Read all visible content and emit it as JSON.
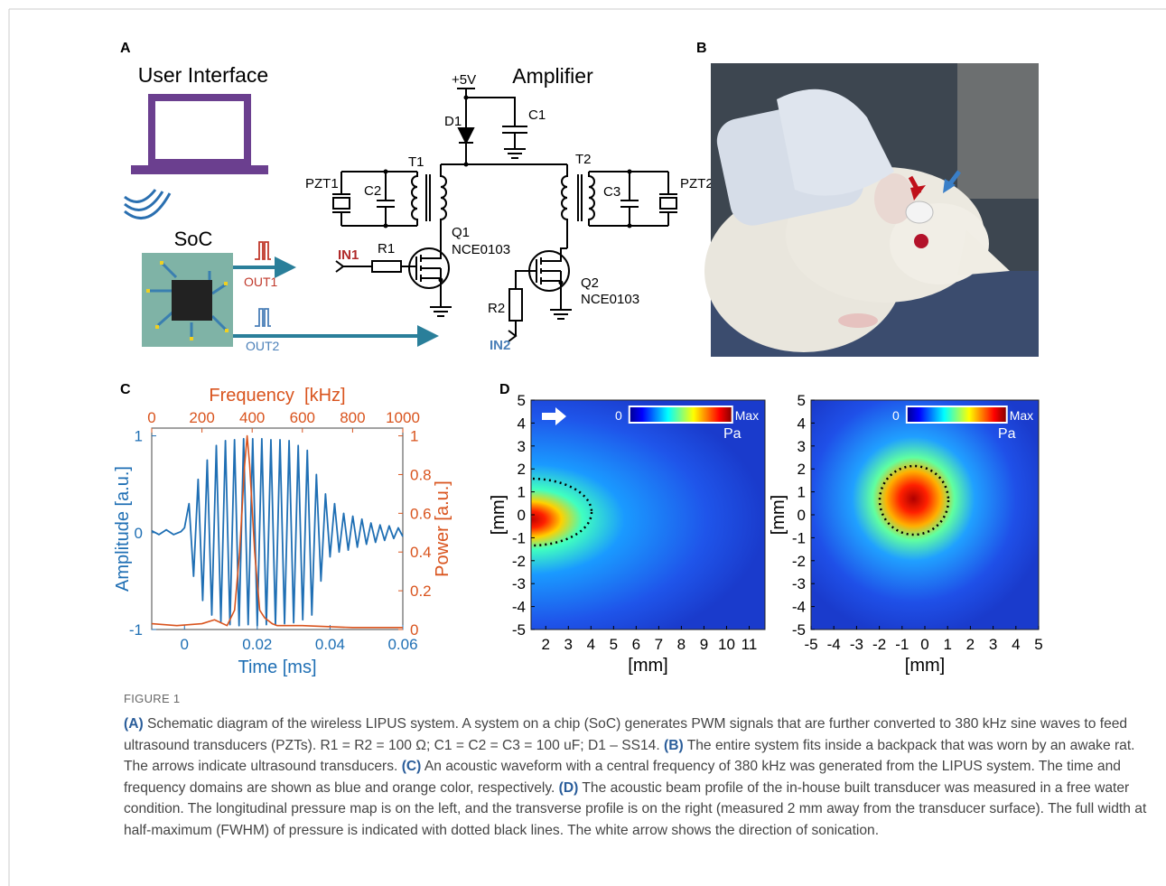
{
  "figure": {
    "panels": [
      "A",
      "B",
      "C",
      "D"
    ],
    "schematic": {
      "ui_title": "User Interface",
      "soc": "SoC",
      "out1": "OUT1",
      "out2": "OUT2",
      "amp_title": "Amplifier",
      "vcc": "+5V",
      "d1": "D1",
      "c1": "C1",
      "t1": "T1",
      "t2": "T2",
      "pzt1": "PZT1",
      "c2": "C2",
      "c3": "C3",
      "pzt2": "PZT2",
      "q1": "Q1",
      "q1_part": "NCE0103",
      "in1": "IN1",
      "r1": "R1",
      "q2": "Q2",
      "q2_part": "NCE0103",
      "r2": "R2",
      "in2": "IN2"
    }
  },
  "chart_data": [
    {
      "type": "line",
      "x2label": "Frequency  [kHz]",
      "xlabel": "Time [ms]",
      "ylabel": "Amplitude [a.u.]",
      "y2label": "Power [a.u.]",
      "xlim": [
        -0.009,
        0.06
      ],
      "x2lim": [
        0,
        1000
      ],
      "ylim": [
        -1,
        1.08
      ],
      "y2lim": [
        0,
        1.04
      ],
      "xticks": [
        0,
        0.02,
        0.04,
        0.06
      ],
      "x2ticks": [
        0,
        200,
        400,
        600,
        800,
        1000
      ],
      "yticks": [
        -1,
        0,
        1
      ],
      "y2ticks": [
        0,
        0.2,
        0.4,
        0.6,
        0.8,
        1
      ],
      "series": [
        {
          "color": "#1f6fb4",
          "x": [
            -0.009,
            -0.007,
            -0.005,
            -0.003,
            -0.001,
            0,
            0.00125,
            0.0025,
            0.00375,
            0.005,
            0.00625,
            0.0075,
            0.00875,
            0.01,
            0.01125,
            0.0125,
            0.01375,
            0.015,
            0.01625,
            0.0175,
            0.01875,
            0.02,
            0.02125,
            0.0225,
            0.02375,
            0.025,
            0.02625,
            0.0275,
            0.02875,
            0.03,
            0.03125,
            0.0325,
            0.03375,
            0.035,
            0.03625,
            0.0375,
            0.03875,
            0.04,
            0.04125,
            0.0425,
            0.04375,
            0.045,
            0.04625,
            0.0475,
            0.04875,
            0.05,
            0.05125,
            0.0525,
            0.05375,
            0.055,
            0.05625,
            0.0575,
            0.05875,
            0.06
          ],
          "values": [
            0.02,
            -0.02,
            0.03,
            -0.02,
            0.01,
            0.05,
            0.3,
            -0.45,
            0.55,
            -0.7,
            0.75,
            -0.85,
            0.9,
            -0.92,
            0.95,
            -0.95,
            0.96,
            -0.96,
            0.97,
            -0.95,
            0.97,
            -0.96,
            0.97,
            -0.95,
            0.96,
            -0.95,
            0.96,
            -0.94,
            0.95,
            -0.93,
            0.9,
            -0.9,
            0.85,
            -0.85,
            0.6,
            -0.5,
            0.4,
            -0.25,
            0.3,
            -0.2,
            0.2,
            -0.18,
            0.17,
            -0.15,
            0.14,
            -0.12,
            0.1,
            -0.1,
            0.08,
            -0.08,
            0.07,
            -0.06,
            0.05,
            -0.04
          ]
        },
        {
          "color": "#d9541e",
          "axis": "y2",
          "x": [
            0,
            100,
            200,
            250,
            300,
            330,
            350,
            370,
            380,
            390,
            410,
            430,
            450,
            480,
            500,
            600,
            800,
            1000
          ],
          "values": [
            0.03,
            0.02,
            0.03,
            0.05,
            0.02,
            0.1,
            0.4,
            0.85,
            1,
            0.85,
            0.4,
            0.1,
            0.06,
            0.03,
            0.02,
            0.02,
            0.01,
            0.01
          ]
        }
      ]
    },
    {
      "type": "heatmap",
      "xlabel": "[mm]",
      "ylabel": "[mm]",
      "xlim": [
        1.35,
        11.7
      ],
      "ylim": [
        -5,
        5
      ],
      "xticks": [
        2,
        3,
        4,
        5,
        6,
        7,
        8,
        9,
        10,
        11
      ],
      "yticks": [
        5,
        4,
        3,
        2,
        1,
        0,
        -1,
        -2,
        -3,
        -4,
        -5
      ],
      "colorbar": {
        "min_label": "0",
        "max_label": "Max",
        "unit": "Pa"
      }
    },
    {
      "type": "heatmap",
      "xlabel": "[mm]",
      "ylabel": "[mm]",
      "xlim": [
        -5,
        5
      ],
      "ylim": [
        -5,
        5
      ],
      "xticks": [
        -5,
        -4,
        -3,
        -2,
        -1,
        0,
        1,
        2,
        3,
        4,
        5
      ],
      "yticks": [
        5,
        4,
        3,
        2,
        1,
        0,
        -1,
        -2,
        -3,
        -4,
        -5
      ],
      "colorbar": {
        "min_label": "0",
        "max_label": "Max",
        "unit": "Pa"
      }
    }
  ],
  "caption": {
    "label": "FIGURE 1",
    "segments": [
      {
        "bold": true,
        "text": "(A)"
      },
      {
        "bold": false,
        "text": " Schematic diagram of the wireless LIPUS system. A system on a chip (SoC) generates PWM signals that are further converted to 380 kHz sine waves to feed ultrasound transducers (PZTs). R1 = R2 = 100 Ω; C1 = C2 = C3 = 100 uF; D1 – SS14. "
      },
      {
        "bold": true,
        "text": "(B)"
      },
      {
        "bold": false,
        "text": " The entire system fits inside a backpack that was worn by an awake rat. The arrows indicate ultrasound transducers. "
      },
      {
        "bold": true,
        "text": "(C)"
      },
      {
        "bold": false,
        "text": " An acoustic waveform with a central frequency of 380 kHz was generated from the LIPUS system. The time and frequency domains are shown as blue and orange color, respectively. "
      },
      {
        "bold": true,
        "text": "(D)"
      },
      {
        "bold": false,
        "text": " The acoustic beam profile of the in-house built transducer was measured in a free water condition. The longitudinal pressure map is on the left, and the transverse profile is on the right (measured 2 mm away from the transducer surface). The full width at half-maximum (FWHM) of pressure is indicated with dotted black lines. The white arrow shows the direction of sonication."
      }
    ]
  }
}
